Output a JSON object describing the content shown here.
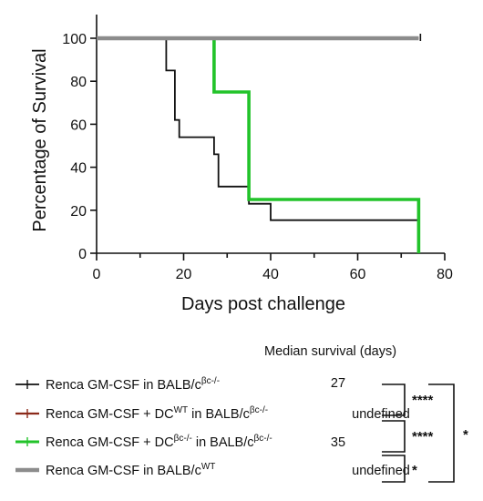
{
  "chart_data": {
    "type": "line",
    "subtype": "kaplan-meier step",
    "xlabel": "Days post challenge",
    "ylabel": "Percentage of Survival",
    "xlim": [
      0,
      80
    ],
    "ylim": [
      0,
      100
    ],
    "xticks": [
      "0",
      "20",
      "40",
      "60",
      "80"
    ],
    "yticks": [
      "0",
      "20",
      "40",
      "60",
      "80",
      "100"
    ],
    "grid": false,
    "legend_position": "bottom",
    "series": [
      {
        "name_parts": [
          "Renca GM-CSF in BALB/c",
          "βc-/-",
          ""
        ],
        "color": "#111111",
        "median": "27",
        "x": [
          0,
          16,
          16,
          18,
          18,
          19,
          19,
          20,
          20,
          27,
          27,
          28,
          28,
          35,
          35,
          40,
          40,
          74,
          74
        ],
        "y": [
          100,
          100,
          85,
          85,
          62,
          62,
          54,
          54,
          54,
          54,
          46,
          46,
          31,
          31,
          23,
          23,
          15.4,
          15.4,
          7.7
        ]
      },
      {
        "name_parts": [
          "Renca GM-CSF + DC",
          "WT",
          " in BALB/c",
          "βc-/-"
        ],
        "color": "#8B2A1A",
        "median": "undefined",
        "x": [
          0,
          74
        ],
        "y": [
          100,
          100
        ]
      },
      {
        "name_parts": [
          "Renca GM-CSF + DC",
          "βc-/-",
          " in BALB/c",
          "βc-/-"
        ],
        "color": "#22C32A",
        "median": "35",
        "x": [
          0,
          27,
          27,
          35,
          35,
          74,
          74
        ],
        "y": [
          100,
          100,
          75,
          75,
          25,
          25,
          0
        ]
      },
      {
        "name_parts": [
          "Renca GM-CSF in BALB/c",
          "WT",
          ""
        ],
        "color": "#8C8C8C",
        "median": "undefined",
        "x": [
          0,
          74
        ],
        "y": [
          100,
          100
        ]
      }
    ],
    "median_header": "Median survival (days)",
    "significance": [
      {
        "label": "****",
        "between": [
          0,
          1
        ]
      },
      {
        "label": "****",
        "between": [
          1,
          2
        ]
      },
      {
        "label": "*",
        "between": [
          2,
          3
        ]
      },
      {
        "label": "*",
        "between": [
          0,
          3
        ]
      }
    ]
  }
}
